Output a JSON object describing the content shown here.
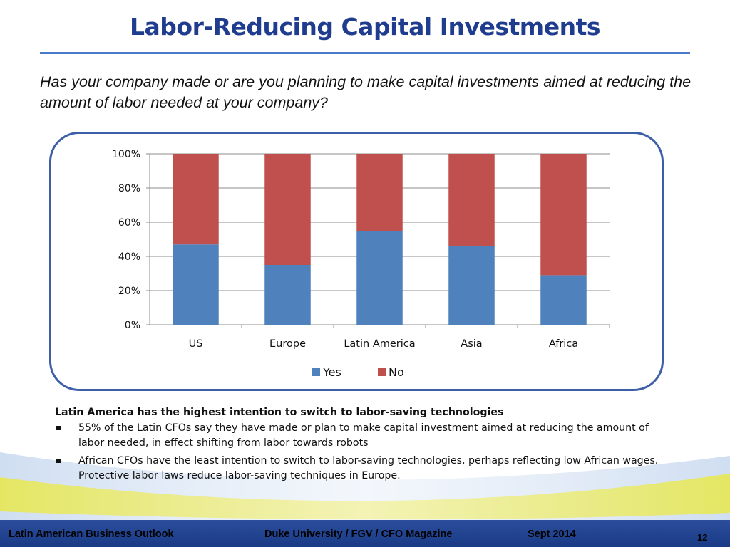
{
  "slide": {
    "title": "Labor-Reducing Capital Investments",
    "question": "Has your company made or are you planning to make capital investments aimed at reducing the amount of labor needed at your company?"
  },
  "colors": {
    "title": "#1f3c8f",
    "yes": "#4f81bd",
    "no": "#c0504d",
    "frame": "#3d5fa8",
    "footer_bar": "#24479a"
  },
  "chart_data": {
    "type": "bar",
    "stacked": true,
    "categories": [
      "US",
      "Europe",
      "Latin America",
      "Asia",
      "Africa"
    ],
    "series": [
      {
        "name": "Yes",
        "color": "#4f81bd",
        "values": [
          47,
          35,
          55,
          46,
          29
        ]
      },
      {
        "name": "No",
        "color": "#c0504d",
        "values": [
          53,
          65,
          45,
          54,
          71
        ]
      }
    ],
    "yticks": [
      "0%",
      "20%",
      "40%",
      "60%",
      "80%",
      "100%"
    ],
    "ylim": [
      0,
      100
    ],
    "grid": true,
    "legend": "bottom"
  },
  "notes": {
    "heading": "Latin America has the highest intention to switch to labor-saving technologies",
    "bullets": [
      "55% of the Latin CFOs say they have made or plan to make capital investment aimed at reducing the amount of labor needed, in effect shifting from labor towards robots",
      "African CFOs have the least intention to switch to labor-saving technologies, perhaps reflecting low African wages. Protective labor laws reduce labor-saving techniques in Europe."
    ]
  },
  "footer": {
    "left": "Latin American Business Outlook",
    "center": "Duke University / FGV / CFO Magazine",
    "date": "Sept 2014",
    "page": "12"
  }
}
